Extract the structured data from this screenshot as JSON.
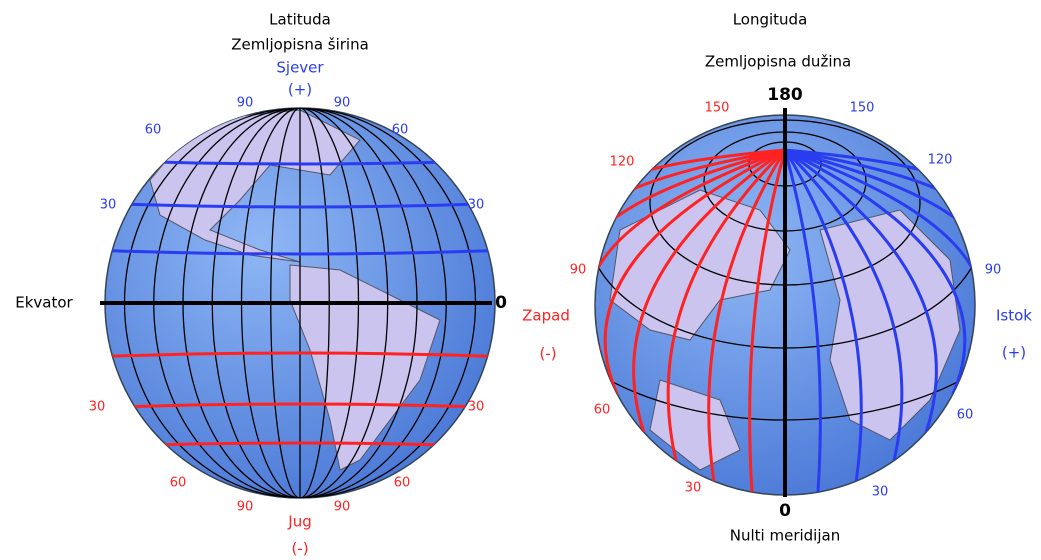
{
  "left": {
    "title": "Latituda",
    "subtitle": "Zemljopisna širina",
    "north": "Sjever",
    "north_sign": "(+)",
    "south": "Jug",
    "south_sign": "(-)",
    "equator": "Ekvator",
    "equator_value": "0",
    "north_labels": [
      "90",
      "90",
      "60",
      "60",
      "30",
      "30"
    ],
    "south_labels": [
      "30",
      "30",
      "60",
      "60",
      "90",
      "90"
    ]
  },
  "right": {
    "title": "Longituda",
    "subtitle": "Zemljopisna dužina",
    "top_value": "180",
    "west": "Zapad",
    "west_sign": "(-)",
    "east": "Istok",
    "east_sign": "(+)",
    "west_labels": [
      "150",
      "120",
      "90",
      "60",
      "30"
    ],
    "east_labels": [
      "150",
      "120",
      "90",
      "60",
      "30"
    ],
    "prime_value": "0",
    "prime_meridian": "Nulti meridijan"
  }
}
